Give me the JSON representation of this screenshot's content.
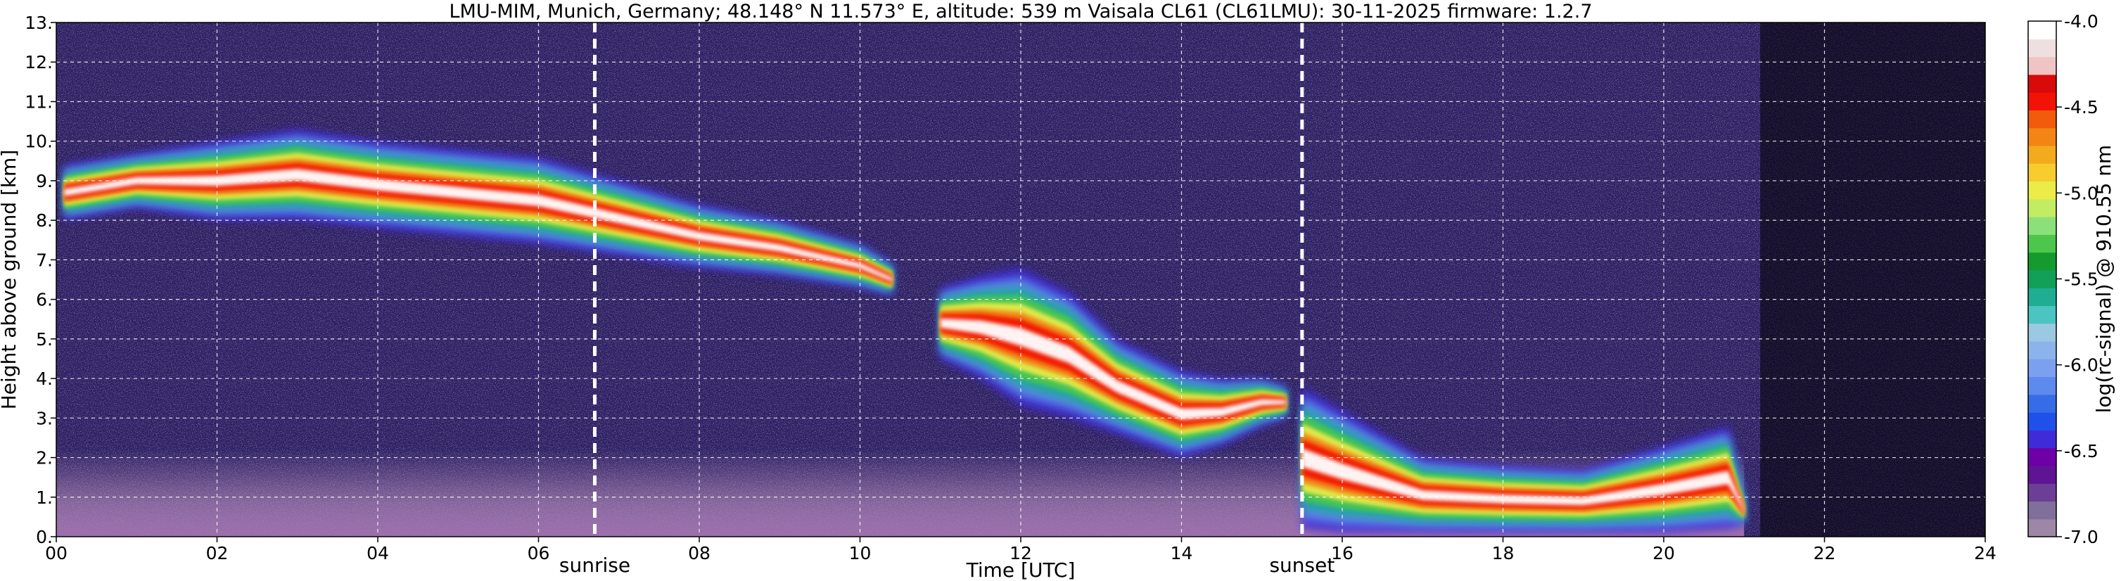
{
  "chart_data": {
    "type": "heatmap",
    "title": "LMU-MIM, Munich, Germany; 48.148° N 11.573° E, altitude: 539 m    Vaisala CL61 (CL61LMU): 30-11-2025    firmware: 1.2.7",
    "xlabel": "Time [UTC]",
    "ylabel": "Height above ground [km]",
    "xlim": [
      0,
      24
    ],
    "ylim": [
      0,
      13
    ],
    "x_ticks": [
      "00",
      "02",
      "04",
      "06",
      "08",
      "10",
      "12",
      "14",
      "16",
      "18",
      "20",
      "22",
      "24"
    ],
    "y_ticks": [
      "0.",
      "1.",
      "2.",
      "3.",
      "4.",
      "5.",
      "6.",
      "7.",
      "8.",
      "9.",
      "10.",
      "11.",
      "12.",
      "13."
    ],
    "grid": true,
    "annotations": [
      {
        "label": "sunrise",
        "x": 6.7
      },
      {
        "label": "sunset",
        "x": 15.5
      }
    ],
    "colorbar": {
      "label": "log(rc-signal) @ 910.55 nm",
      "range": [
        -7.0,
        -4.0
      ],
      "ticks": [
        "-4.0",
        "-4.5",
        "-5.0",
        "-5.5",
        "-6.0",
        "-6.5",
        "-7.0"
      ],
      "colors": [
        "#9d87a6",
        "#806f9a",
        "#6c3f97",
        "#5e1494",
        "#6d00a6",
        "#3f2cd8",
        "#1f51ea",
        "#356de6",
        "#5d8aee",
        "#7aa0ef",
        "#8bb4ec",
        "#9bc9e4",
        "#4cc4c1",
        "#1fad94",
        "#12a058",
        "#159a2e",
        "#4cc74c",
        "#8ce07a",
        "#c2ec62",
        "#ecec49",
        "#f6cc2f",
        "#f3ab1e",
        "#f28514",
        "#f25a0c",
        "#f31206",
        "#d80a0a",
        "#f0c4c4",
        "#eee0e0",
        "#ffffff"
      ]
    },
    "cloud_layers": [
      {
        "name": "upper",
        "points": [
          [
            0.1,
            8.0,
            9.4
          ],
          [
            1,
            8.3,
            9.7
          ],
          [
            2,
            8.0,
            10.0
          ],
          [
            3,
            8.0,
            10.3
          ],
          [
            4,
            7.8,
            10.0
          ],
          [
            5,
            7.6,
            9.8
          ],
          [
            6,
            7.4,
            9.6
          ],
          [
            7,
            7.1,
            9.0
          ],
          [
            8,
            6.8,
            8.4
          ],
          [
            9,
            6.6,
            8.0
          ],
          [
            10,
            6.3,
            7.4
          ],
          [
            10.4,
            6.1,
            6.9
          ]
        ]
      },
      {
        "name": "middle",
        "points": [
          [
            11.0,
            4.5,
            6.3
          ],
          [
            11.5,
            4.0,
            6.6
          ],
          [
            12,
            3.3,
            6.8
          ],
          [
            12.6,
            3.0,
            6.2
          ],
          [
            13.2,
            2.6,
            5.0
          ],
          [
            14,
            2.0,
            4.2
          ],
          [
            14.5,
            2.3,
            4.0
          ],
          [
            15,
            2.8,
            4.0
          ],
          [
            15.3,
            3.0,
            3.8
          ]
        ]
      },
      {
        "name": "lower",
        "points": [
          [
            15.5,
            0.2,
            3.8
          ],
          [
            16,
            0.1,
            3.2
          ],
          [
            17,
            0.1,
            2.0
          ],
          [
            18,
            0.1,
            1.8
          ],
          [
            19,
            0.1,
            1.7
          ],
          [
            20,
            0.1,
            2.3
          ],
          [
            20.8,
            0.2,
            2.8
          ],
          [
            21.0,
            0.3,
            1.0
          ]
        ]
      }
    ]
  }
}
